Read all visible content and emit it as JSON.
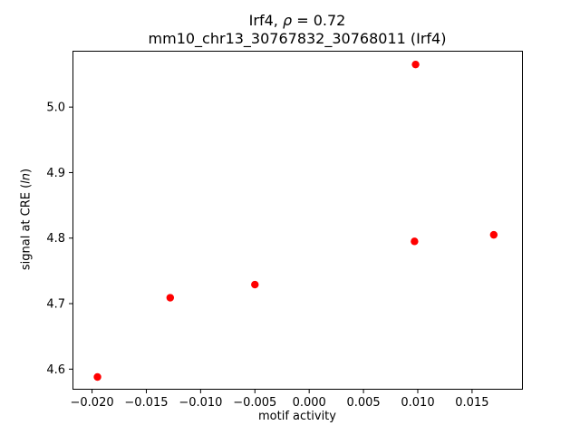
{
  "chart_data": {
    "type": "scatter",
    "title_line1_prefix": "Irf4, ",
    "title_line1_rho": "ρ",
    "title_line1_suffix": " = 0.72",
    "title_line2": "mm10_chr13_30767832_30768011 (Irf4)",
    "xlabel": "motif activity",
    "ylabel_prefix": "signal at CRE (",
    "ylabel_italic": "ln",
    "ylabel_suffix": ")",
    "marker_color": "#ff0000",
    "axis_color": "#000000",
    "background_color": "#ffffff",
    "legend": "none",
    "grid": false,
    "xlim": [
      -0.0218,
      0.0196
    ],
    "ylim": [
      4.57,
      5.086
    ],
    "xtick_values": [
      -0.02,
      -0.015,
      -0.01,
      -0.005,
      0.0,
      0.005,
      0.01,
      0.015
    ],
    "xtick_labels": [
      "−0.020",
      "−0.015",
      "−0.010",
      "−0.005",
      "0.000",
      "0.005",
      "0.010",
      "0.015"
    ],
    "ytick_values": [
      4.6,
      4.7,
      4.8,
      4.9,
      5.0
    ],
    "ytick_labels": [
      "4.6",
      "4.7",
      "4.8",
      "4.9",
      "5.0"
    ],
    "points": [
      {
        "x": -0.0195,
        "y": 4.588
      },
      {
        "x": -0.0128,
        "y": 4.709
      },
      {
        "x": -0.005,
        "y": 4.729
      },
      {
        "x": 0.0097,
        "y": 4.795
      },
      {
        "x": 0.0098,
        "y": 5.065
      },
      {
        "x": 0.017,
        "y": 4.805
      }
    ]
  }
}
